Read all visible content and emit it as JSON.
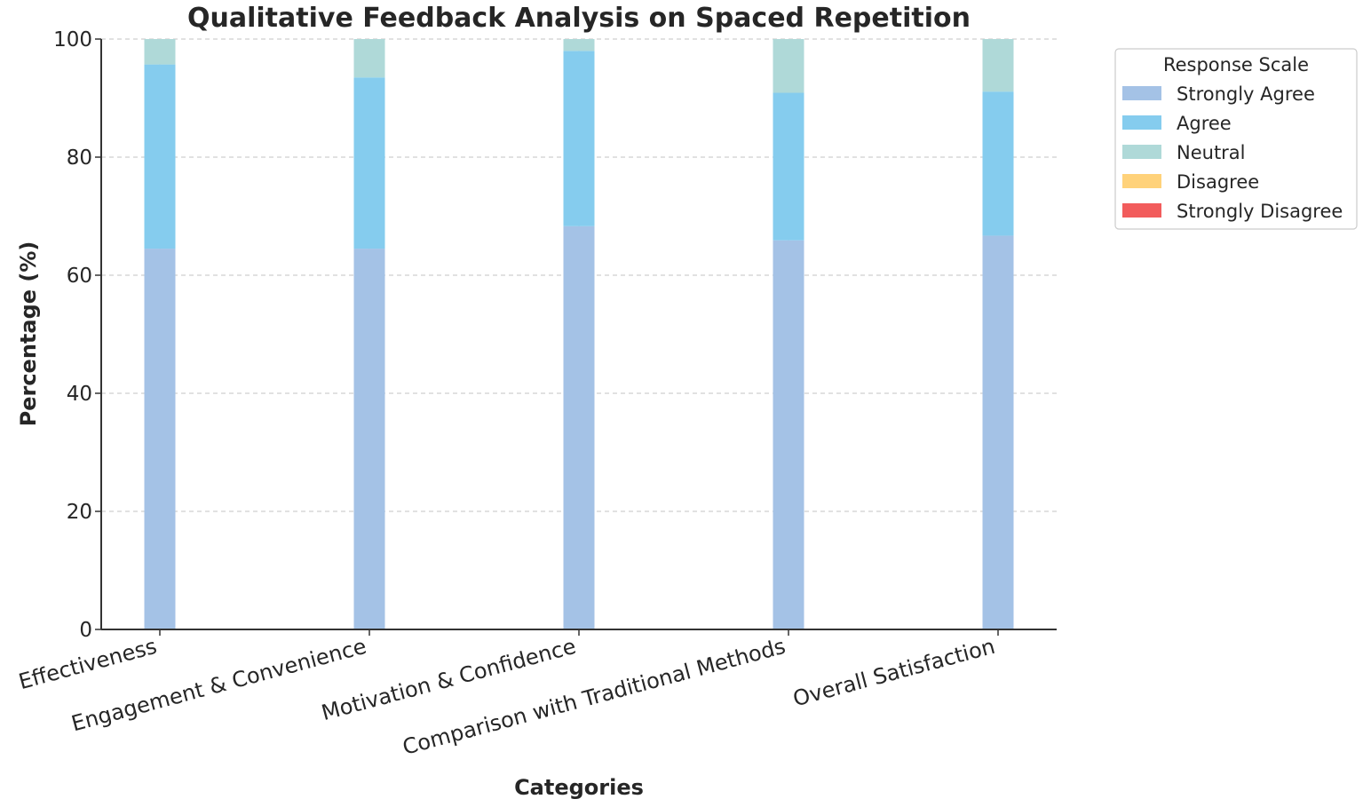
{
  "chart_data": {
    "type": "bar",
    "stacked": true,
    "title": "Qualitative Feedback Analysis on Spaced Repetition",
    "xlabel": "Categories",
    "ylabel": "Percentage (%)",
    "ylim": [
      0,
      100
    ],
    "yticks": [
      0,
      20,
      40,
      60,
      80,
      100
    ],
    "grid": "y-dashed",
    "categories": [
      "Effectiveness",
      "Engagement & Convenience",
      "Motivation & Confidence",
      "Comparison with Traditional Methods",
      "Overall Satisfaction"
    ],
    "legend": {
      "title": "Response Scale",
      "placement": "outside-top-right"
    },
    "series": [
      {
        "name": "Strongly Agree",
        "color": "#a4c2e6",
        "values": [
          64.5,
          64.5,
          68.3,
          65.9,
          66.7
        ]
      },
      {
        "name": "Agree",
        "color": "#85ccee",
        "values": [
          31.2,
          29.0,
          29.7,
          25.0,
          24.4
        ]
      },
      {
        "name": "Neutral",
        "color": "#afd9d8",
        "values": [
          4.3,
          6.5,
          2.0,
          9.1,
          8.9
        ]
      },
      {
        "name": "Disagree",
        "color": "#ffd27a",
        "values": [
          0,
          0,
          0,
          0,
          0
        ]
      },
      {
        "name": "Strongly Disagree",
        "color": "#f25c5c",
        "values": [
          0,
          0,
          0,
          0,
          0
        ]
      }
    ]
  }
}
